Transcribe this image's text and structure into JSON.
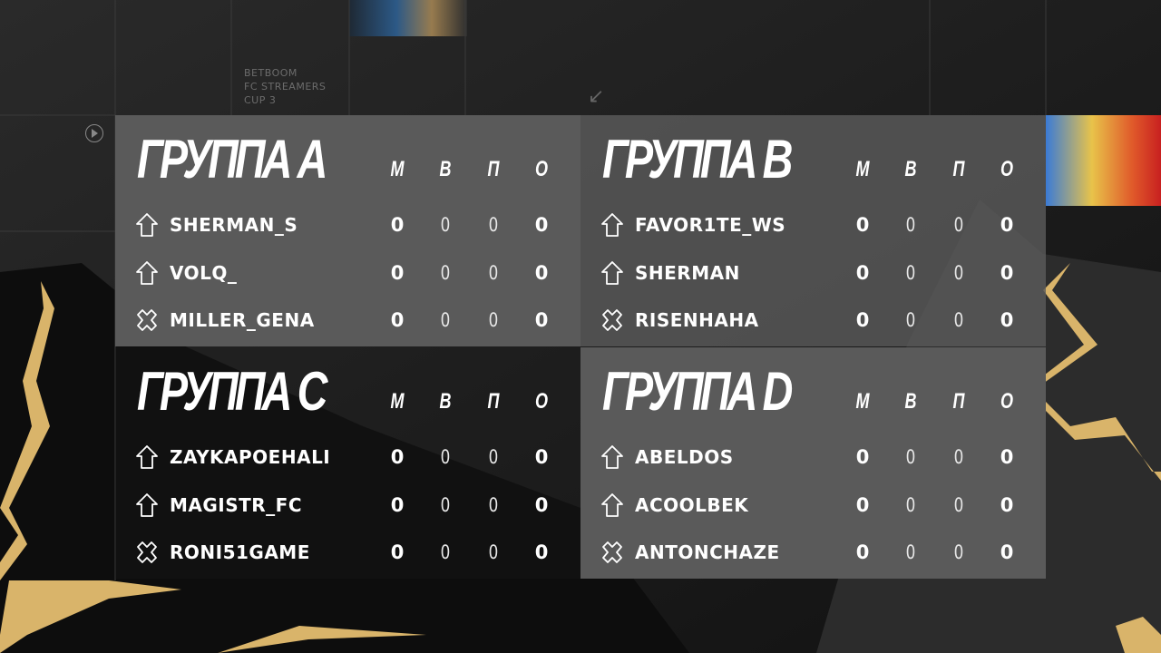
{
  "brand": {
    "line1": "BETBOOM",
    "line2": "FC STREAMERS",
    "line3": "CUP 3"
  },
  "columns": [
    "М",
    "В",
    "П",
    "О"
  ],
  "colors": {
    "panel": "#5a5a5a",
    "gold": "#d9b46a",
    "text": "#ffffff"
  },
  "groups": [
    {
      "title": "ГРУППА A",
      "players": [
        {
          "icon": "arrow-up-icon",
          "name": "SHERMAN_S",
          "stats": [
            0,
            0,
            0,
            0
          ]
        },
        {
          "icon": "arrow-up-icon",
          "name": "VOLQ_",
          "stats": [
            0,
            0,
            0,
            0
          ]
        },
        {
          "icon": "cross-icon",
          "name": "MILLER_GENA",
          "stats": [
            0,
            0,
            0,
            0
          ]
        }
      ]
    },
    {
      "title": "ГРУППА B",
      "players": [
        {
          "icon": "arrow-up-icon",
          "name": "FAVOR1TE_WS",
          "stats": [
            0,
            0,
            0,
            0
          ]
        },
        {
          "icon": "arrow-up-icon",
          "name": "SHERMAN",
          "stats": [
            0,
            0,
            0,
            0
          ]
        },
        {
          "icon": "cross-icon",
          "name": "RISENHAHA",
          "stats": [
            0,
            0,
            0,
            0
          ]
        }
      ]
    },
    {
      "title": "ГРУППА C",
      "players": [
        {
          "icon": "arrow-up-icon",
          "name": "ZAYKAPOEHALI",
          "stats": [
            0,
            0,
            0,
            0
          ]
        },
        {
          "icon": "arrow-up-icon",
          "name": "MAGISTR_FC",
          "stats": [
            0,
            0,
            0,
            0
          ]
        },
        {
          "icon": "cross-icon",
          "name": "RONI51GAME",
          "stats": [
            0,
            0,
            0,
            0
          ]
        }
      ]
    },
    {
      "title": "ГРУППА D",
      "players": [
        {
          "icon": "arrow-up-icon",
          "name": "ABELDOS",
          "stats": [
            0,
            0,
            0,
            0
          ]
        },
        {
          "icon": "arrow-up-icon",
          "name": "ACOOLBEK",
          "stats": [
            0,
            0,
            0,
            0
          ]
        },
        {
          "icon": "cross-icon",
          "name": "ANTONCHAZE",
          "stats": [
            0,
            0,
            0,
            0
          ]
        }
      ]
    }
  ]
}
